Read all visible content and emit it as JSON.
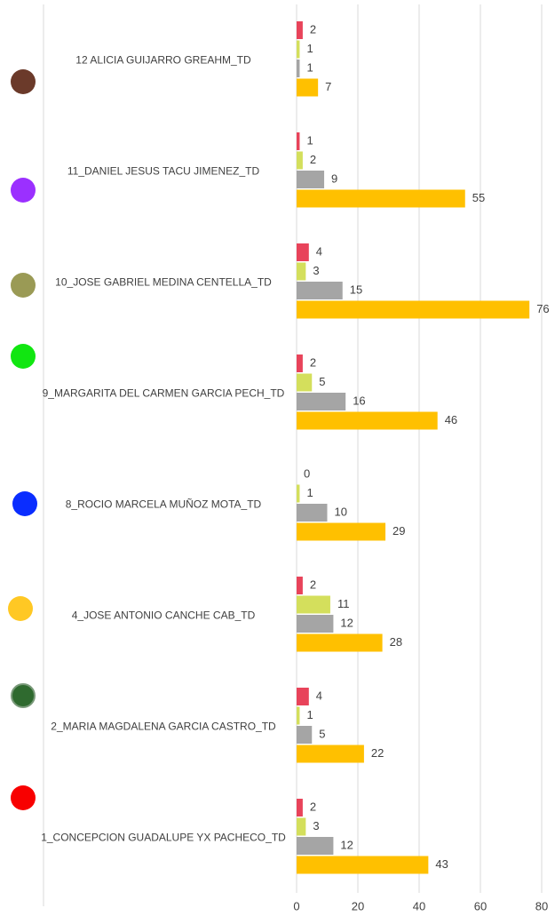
{
  "chart_data": {
    "type": "barh",
    "categories": [
      "12 ALICIA GUIJARRO GREAHM_TD",
      "11_DANIEL JESUS TACU JIMENEZ_TD",
      "10_JOSE GABRIEL MEDINA CENTELLA_TD",
      "9_MARGARITA DEL CARMEN GARCIA PECH_TD",
      "8_ROCIO MARCELA MUÑOZ MOTA_TD",
      "4_JOSE ANTONIO CANCHE CAB_TD",
      "2_MARIA MAGDALENA GARCIA CASTRO_TD",
      "1_CONCEPCION GUADALUPE YX PACHECO_TD"
    ],
    "series": [
      {
        "color": "#e8435a",
        "values": [
          2,
          1,
          4,
          2,
          0,
          2,
          4,
          2
        ]
      },
      {
        "color": "#d4df5c",
        "values": [
          1,
          2,
          3,
          5,
          1,
          11,
          1,
          3
        ]
      },
      {
        "color": "#a5a5a5",
        "values": [
          1,
          9,
          15,
          16,
          10,
          12,
          5,
          12
        ]
      },
      {
        "color": "#ffc000",
        "values": [
          7,
          55,
          76,
          46,
          29,
          28,
          22,
          43
        ]
      }
    ],
    "xlim": [
      0,
      80
    ],
    "xticks": [
      0,
      20,
      40,
      60,
      80
    ],
    "grid": true
  }
}
